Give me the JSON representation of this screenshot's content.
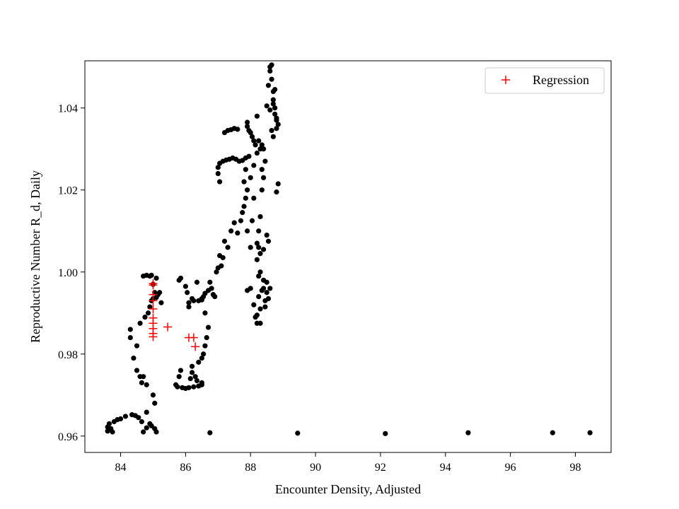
{
  "chart_data": {
    "type": "scatter",
    "title": "",
    "xlabel": "Encounter Density, Adjusted",
    "ylabel": "Reproductive Number R_d, Daily",
    "xlim": [
      82.9,
      99.1
    ],
    "ylim": [
      0.956,
      1.0515
    ],
    "xticks": [
      84,
      86,
      88,
      90,
      92,
      94,
      96,
      98
    ],
    "yticks": [
      0.96,
      0.98,
      1.0,
      1.02,
      1.04
    ],
    "xtick_labels": [
      "84",
      "86",
      "88",
      "90",
      "92",
      "94",
      "96",
      "98"
    ],
    "ytick_labels": [
      "0.96",
      "0.98",
      "1.00",
      "1.02",
      "1.04"
    ],
    "grid": false,
    "legend": {
      "placement": "top-right",
      "entries": [
        "Regression"
      ]
    },
    "colors": {
      "data": "#000000",
      "regression": "#ff0000"
    },
    "series": [
      {
        "marker": "dot",
        "color": "#000000",
        "points": [
          [
            83.6,
            0.9612
          ],
          [
            83.6,
            0.9622
          ],
          [
            83.65,
            0.963
          ],
          [
            83.7,
            0.9618
          ],
          [
            83.75,
            0.961
          ],
          [
            83.8,
            0.9635
          ],
          [
            83.9,
            0.964
          ],
          [
            84.0,
            0.9642
          ],
          [
            84.15,
            0.9648
          ],
          [
            84.35,
            0.9652
          ],
          [
            84.45,
            0.965
          ],
          [
            84.55,
            0.9645
          ],
          [
            84.65,
            0.9635
          ],
          [
            84.7,
            0.961
          ],
          [
            84.8,
            0.962
          ],
          [
            84.8,
            0.9658
          ],
          [
            84.9,
            0.963
          ],
          [
            84.95,
            0.9625
          ],
          [
            85.05,
            0.9618
          ],
          [
            85.1,
            0.961
          ],
          [
            84.3,
            0.986
          ],
          [
            84.3,
            0.984
          ],
          [
            84.4,
            0.979
          ],
          [
            84.5,
            0.976
          ],
          [
            84.5,
            0.982
          ],
          [
            84.6,
            0.9745
          ],
          [
            84.6,
            0.9875
          ],
          [
            84.65,
            0.973
          ],
          [
            84.7,
            0.9745
          ],
          [
            84.75,
            0.989
          ],
          [
            84.8,
            0.9725
          ],
          [
            84.85,
            0.99
          ],
          [
            84.9,
            0.9915
          ],
          [
            84.95,
            0.993
          ],
          [
            85.0,
            0.97
          ],
          [
            85.05,
            0.968
          ],
          [
            84.7,
            0.999
          ],
          [
            84.8,
            0.9992
          ],
          [
            84.9,
            0.999
          ],
          [
            84.95,
            0.9992
          ],
          [
            85.0,
            0.997
          ],
          [
            85.05,
            0.995
          ],
          [
            85.1,
            0.9938
          ],
          [
            85.15,
            0.9945
          ],
          [
            85.2,
            0.995
          ],
          [
            85.25,
            0.9925
          ],
          [
            85.0,
            0.9935
          ],
          [
            85.1,
            0.9985
          ],
          [
            85.8,
            0.998
          ],
          [
            85.85,
            0.9985
          ],
          [
            86.0,
            0.9965
          ],
          [
            86.05,
            0.995
          ],
          [
            86.1,
            0.9925
          ],
          [
            86.1,
            0.9915
          ],
          [
            86.2,
            0.9935
          ],
          [
            86.25,
            0.993
          ],
          [
            86.35,
            0.9975
          ],
          [
            86.4,
            0.993
          ],
          [
            86.5,
            0.9932
          ],
          [
            86.55,
            0.994
          ],
          [
            86.6,
            0.9948
          ],
          [
            86.7,
            0.9955
          ],
          [
            86.75,
            0.9975
          ],
          [
            86.8,
            0.996
          ],
          [
            86.85,
            0.9945
          ],
          [
            86.9,
            0.994
          ],
          [
            85.7,
            0.9725
          ],
          [
            85.75,
            0.972
          ],
          [
            85.8,
            0.9745
          ],
          [
            85.85,
            0.976
          ],
          [
            85.9,
            0.9718
          ],
          [
            86.0,
            0.9716
          ],
          [
            86.1,
            0.9718
          ],
          [
            86.15,
            0.974
          ],
          [
            86.2,
            0.977
          ],
          [
            86.2,
            0.9755
          ],
          [
            86.25,
            0.972
          ],
          [
            86.3,
            0.9745
          ],
          [
            86.35,
            0.9735
          ],
          [
            86.4,
            0.978
          ],
          [
            86.4,
            0.9722
          ],
          [
            86.5,
            0.979
          ],
          [
            86.5,
            0.973
          ],
          [
            86.5,
            0.9725
          ],
          [
            86.55,
            0.98
          ],
          [
            86.6,
            0.982
          ],
          [
            86.65,
            0.984
          ],
          [
            86.7,
            0.9865
          ],
          [
            86.6,
            0.99
          ],
          [
            86.5,
            0.9935
          ],
          [
            86.95,
            1.0
          ],
          [
            87.0,
            1.001
          ],
          [
            87.05,
            1.004
          ],
          [
            87.1,
            1.0015
          ],
          [
            87.15,
            1.0035
          ],
          [
            87.2,
            1.0075
          ],
          [
            87.3,
            1.006
          ],
          [
            87.4,
            1.01
          ],
          [
            87.5,
            1.012
          ],
          [
            87.6,
            1.0095
          ],
          [
            87.7,
            1.0125
          ],
          [
            87.75,
            1.0145
          ],
          [
            87.8,
            1.016
          ],
          [
            87.85,
            1.018
          ],
          [
            87.9,
            1.01
          ],
          [
            88.0,
            1.006
          ],
          [
            88.05,
            1.0125
          ],
          [
            88.1,
            1.018
          ],
          [
            88.2,
            1.007
          ],
          [
            88.25,
            1.01
          ],
          [
            88.3,
            1.0135
          ],
          [
            88.35,
            1.02
          ],
          [
            87.05,
            1.022
          ],
          [
            87.0,
            1.024
          ],
          [
            87.0,
            1.0255
          ],
          [
            87.05,
            1.0265
          ],
          [
            87.15,
            1.027
          ],
          [
            87.25,
            1.0273
          ],
          [
            87.35,
            1.0275
          ],
          [
            87.45,
            1.0278
          ],
          [
            87.55,
            1.0275
          ],
          [
            87.65,
            1.027
          ],
          [
            87.75,
            1.0272
          ],
          [
            87.85,
            1.0278
          ],
          [
            87.95,
            1.0282
          ],
          [
            87.85,
            1.025
          ],
          [
            87.8,
            1.022
          ],
          [
            87.9,
            1.02
          ],
          [
            88.0,
            1.023
          ],
          [
            88.1,
            1.026
          ],
          [
            88.2,
            1.029
          ],
          [
            88.25,
            1.032
          ],
          [
            88.3,
            1.03
          ],
          [
            88.35,
            1.025
          ],
          [
            88.4,
            1.023
          ],
          [
            88.45,
            1.027
          ],
          [
            87.9,
            1.0365
          ],
          [
            87.9,
            1.0355
          ],
          [
            87.95,
            1.0345
          ],
          [
            88.0,
            1.034
          ],
          [
            88.05,
            1.033
          ],
          [
            88.1,
            1.032
          ],
          [
            88.15,
            1.031
          ],
          [
            88.2,
            1.038
          ],
          [
            88.35,
            1.031
          ],
          [
            88.4,
            1.03
          ],
          [
            87.6,
            1.0348
          ],
          [
            87.5,
            1.035
          ],
          [
            87.4,
            1.0347
          ],
          [
            87.3,
            1.0345
          ],
          [
            87.2,
            1.034
          ],
          [
            87.9,
            0.9955
          ],
          [
            88.0,
            0.996
          ],
          [
            88.1,
            0.992
          ],
          [
            88.15,
            0.989
          ],
          [
            88.2,
            0.9875
          ],
          [
            88.2,
            0.9895
          ],
          [
            88.25,
            0.994
          ],
          [
            88.25,
            0.999
          ],
          [
            88.3,
            0.9875
          ],
          [
            88.3,
            0.991
          ],
          [
            88.3,
            1.0
          ],
          [
            88.35,
            0.9955
          ],
          [
            88.4,
            0.998
          ],
          [
            88.4,
            0.996
          ],
          [
            88.45,
            0.993
          ],
          [
            88.45,
            0.9915
          ],
          [
            88.5,
            0.9975
          ],
          [
            88.5,
            0.995
          ],
          [
            88.55,
            0.9935
          ],
          [
            88.6,
            0.996
          ],
          [
            88.2,
            1.003
          ],
          [
            88.25,
            1.006
          ],
          [
            88.3,
            1.0045
          ],
          [
            88.4,
            1.0055
          ],
          [
            88.5,
            1.009
          ],
          [
            88.55,
            1.0075
          ],
          [
            88.5,
            1.0405
          ],
          [
            88.55,
            1.0455
          ],
          [
            88.6,
            1.05
          ],
          [
            88.6,
            1.049
          ],
          [
            88.65,
            1.0505
          ],
          [
            88.65,
            1.047
          ],
          [
            88.7,
            1.044
          ],
          [
            88.7,
            1.042
          ],
          [
            88.75,
            1.04
          ],
          [
            88.75,
            1.0385
          ],
          [
            88.8,
            1.037
          ],
          [
            88.8,
            1.035
          ],
          [
            88.85,
            1.036
          ],
          [
            88.7,
            1.033
          ],
          [
            88.65,
            1.0345
          ],
          [
            88.6,
            1.0395
          ],
          [
            88.7,
            1.041
          ],
          [
            88.75,
            1.0445
          ],
          [
            88.8,
            1.0375
          ],
          [
            88.85,
            1.0215
          ],
          [
            88.8,
            1.0195
          ],
          [
            86.75,
            0.9608
          ],
          [
            89.45,
            0.9607
          ],
          [
            92.15,
            0.9606
          ],
          [
            94.7,
            0.9608
          ],
          [
            97.3,
            0.9608
          ],
          [
            98.45,
            0.9608
          ]
        ]
      },
      {
        "name": "Regression",
        "marker": "plus",
        "color": "#ff0000",
        "points": [
          [
            85.0,
            0.9972
          ],
          [
            85.0,
            0.9968
          ],
          [
            85.0,
            0.9945
          ],
          [
            85.0,
            0.993
          ],
          [
            85.0,
            0.991
          ],
          [
            85.0,
            0.9888
          ],
          [
            85.0,
            0.9875
          ],
          [
            85.0,
            0.9862
          ],
          [
            85.0,
            0.985
          ],
          [
            85.0,
            0.9842
          ],
          [
            85.45,
            0.9866
          ],
          [
            86.1,
            0.984
          ],
          [
            86.25,
            0.984
          ],
          [
            86.3,
            0.9818
          ]
        ]
      }
    ]
  }
}
